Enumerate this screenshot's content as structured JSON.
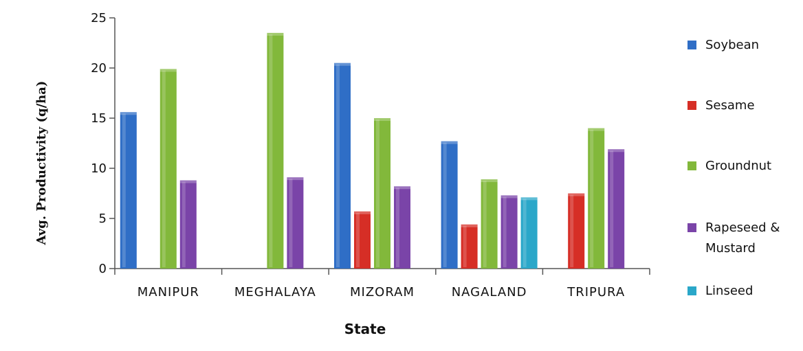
{
  "chart_data": {
    "type": "bar",
    "title": "",
    "xlabel": "State",
    "ylabel": "Avg. Productivity  (q/ha)",
    "ylim": [
      0,
      25
    ],
    "yticks": [
      0,
      5,
      10,
      15,
      20,
      25
    ],
    "grid": false,
    "legend_position": "right",
    "categories": [
      "MANIPUR",
      "MEGHALAYA",
      "MIZORAM",
      "NAGALAND",
      "TRIPURA"
    ],
    "series": [
      {
        "name": "Soybean",
        "color": "#2f6ec6",
        "values": [
          15.6,
          null,
          20.5,
          12.7,
          null
        ]
      },
      {
        "name": "Sesame",
        "color": "#d62e26",
        "values": [
          null,
          null,
          5.7,
          4.4,
          7.5
        ]
      },
      {
        "name": "Groundnut",
        "color": "#82b83b",
        "values": [
          19.9,
          23.5,
          15.0,
          8.9,
          14.0
        ]
      },
      {
        "name": "Rapeseed & Mustard",
        "legend_lines": [
          "Rapeseed &",
          "Mustard"
        ],
        "color": "#7a44a8",
        "values": [
          8.8,
          9.1,
          8.2,
          7.3,
          11.9
        ]
      },
      {
        "name": "Linseed",
        "color": "#2aa7c9",
        "values": [
          null,
          null,
          null,
          7.1,
          null
        ]
      }
    ]
  }
}
